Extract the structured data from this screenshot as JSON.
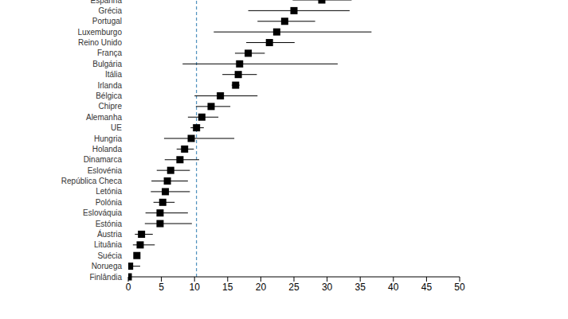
{
  "chart_data": {
    "type": "scatter",
    "categories": [
      "Espanha",
      "Grécia",
      "Portugal",
      "Luxemburgo",
      "Reino Unido",
      "França",
      "Bulgária",
      "Itália",
      "Irlanda",
      "Bélgica",
      "Chipre",
      "Alemanha",
      "UE",
      "Hungria",
      "Holanda",
      "Dinamarca",
      "Eslovénia",
      "República Checa",
      "Letónia",
      "Polónia",
      "Eslováquia",
      "Estónia",
      "Áustria",
      "Lituânia",
      "Suécia",
      "Noruega",
      "Finlândia"
    ],
    "values": [
      29.2,
      25.0,
      23.6,
      22.4,
      21.3,
      18.1,
      16.8,
      16.6,
      16.2,
      13.9,
      12.5,
      11.1,
      10.3,
      9.5,
      8.5,
      7.8,
      6.4,
      5.9,
      5.6,
      5.2,
      4.8,
      4.8,
      2.0,
      1.8,
      1.3,
      0.2,
      0.0
    ],
    "ci_low": [
      24.8,
      18.1,
      19.5,
      12.9,
      17.8,
      16.1,
      8.2,
      14.2,
      15.6,
      10.0,
      10.2,
      9.0,
      9.4,
      5.4,
      7.3,
      5.5,
      4.3,
      3.5,
      3.4,
      3.8,
      2.6,
      2.5,
      1.0,
      0.7,
      1.0,
      0.0,
      0.0
    ],
    "ci_high": [
      33.7,
      33.4,
      28.2,
      36.7,
      25.1,
      20.6,
      31.6,
      19.4,
      16.8,
      19.5,
      15.4,
      13.6,
      11.4,
      16.0,
      9.9,
      10.7,
      9.3,
      9.0,
      9.3,
      7.0,
      9.0,
      9.6,
      3.7,
      4.0,
      1.7,
      1.8,
      0.5
    ],
    "color": "#000000",
    "marker": "square",
    "reference_line": 10.3,
    "reference_line_color": "#2a7ab0",
    "xlim": [
      0,
      50
    ],
    "xticks": [
      0,
      5,
      10,
      15,
      20,
      25,
      30,
      35,
      40,
      45,
      50
    ]
  }
}
